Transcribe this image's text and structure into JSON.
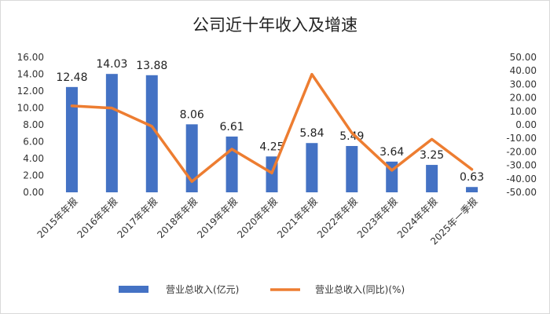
{
  "chart_data": {
    "type": "bar",
    "title": "公司近十年收入及增速",
    "categories": [
      "2015年年报",
      "2016年年报",
      "2017年年报",
      "2018年年报",
      "2019年年报",
      "2020年年报",
      "2021年年报",
      "2022年年报",
      "2023年年报",
      "2024年年报",
      "2025年一季报"
    ],
    "series": [
      {
        "name": "营业总收入(亿元)",
        "type": "bar",
        "axis": "left",
        "color": "#4472C4",
        "values": [
          12.48,
          14.03,
          13.88,
          8.06,
          6.61,
          4.25,
          5.84,
          5.49,
          3.64,
          3.25,
          0.63
        ],
        "labels": [
          "12.48",
          "14.03",
          "13.88",
          "8.06",
          "6.61",
          "4.25",
          "5.84",
          "5.49",
          "3.64",
          "3.25",
          "0.63"
        ]
      },
      {
        "name": "营业总收入(同比)(%)",
        "type": "line",
        "axis": "right",
        "color": "#ED7D31",
        "values": [
          14.0,
          12.4,
          -1.1,
          -42.0,
          -18.0,
          -35.7,
          37.4,
          -6.0,
          -33.7,
          -10.7,
          -33.0
        ]
      }
    ],
    "y_left": {
      "ylim": [
        0,
        16
      ],
      "ticks": [
        "0.00",
        "2.00",
        "4.00",
        "6.00",
        "8.00",
        "10.00",
        "12.00",
        "14.00",
        "16.00"
      ]
    },
    "y_right": {
      "ylim": [
        -50,
        50
      ],
      "ticks": [
        "-50.00",
        "-40.00",
        "-30.00",
        "-20.00",
        "-10.00",
        "0.00",
        "10.00",
        "20.00",
        "30.00",
        "40.00",
        "50.00"
      ]
    },
    "grid": false,
    "legend_position": "bottom"
  }
}
